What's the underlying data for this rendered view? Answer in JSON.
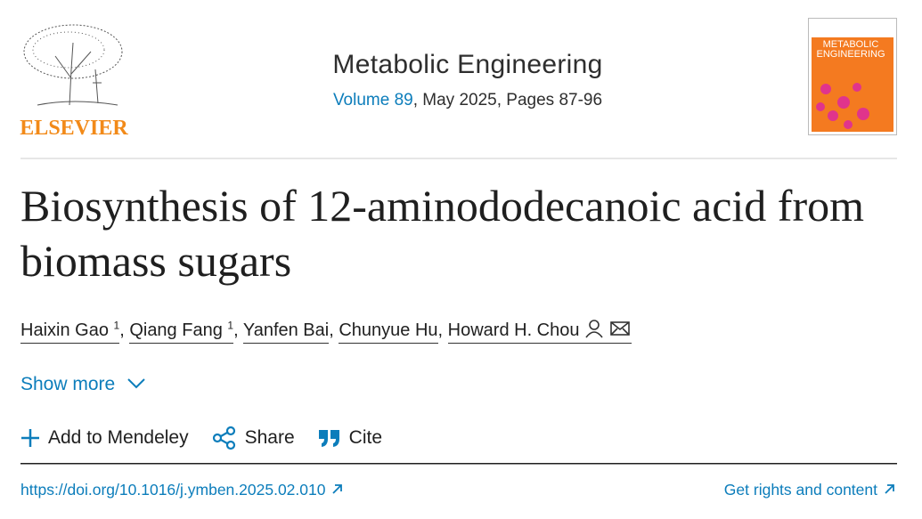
{
  "publisher": {
    "logo_text": "ELSEVIER"
  },
  "journal": {
    "name": "Metabolic Engineering",
    "volume_link": "Volume 89",
    "issue_details": ", May 2025, Pages 87-96"
  },
  "cover": {
    "title_line1": "METABOLIC",
    "title_line2": "ENGINEERING"
  },
  "article": {
    "title": "Biosynthesis of 12-aminododecanoic acid from biomass sugars",
    "authors": [
      {
        "name": "Haixin Gao",
        "affiliation": "1"
      },
      {
        "name": "Qiang Fang",
        "affiliation": "1"
      },
      {
        "name": "Yanfen Bai"
      },
      {
        "name": "Chunyue Hu"
      },
      {
        "name": "Howard H. Chou"
      }
    ],
    "author_separator": ","
  },
  "show_more": "Show more",
  "actions": [
    "Add to Mendeley",
    "Share",
    "Cite"
  ],
  "doi": "https://doi.org/10.1016/j.ymben.2025.02.010",
  "rights": "Get rights and content"
}
